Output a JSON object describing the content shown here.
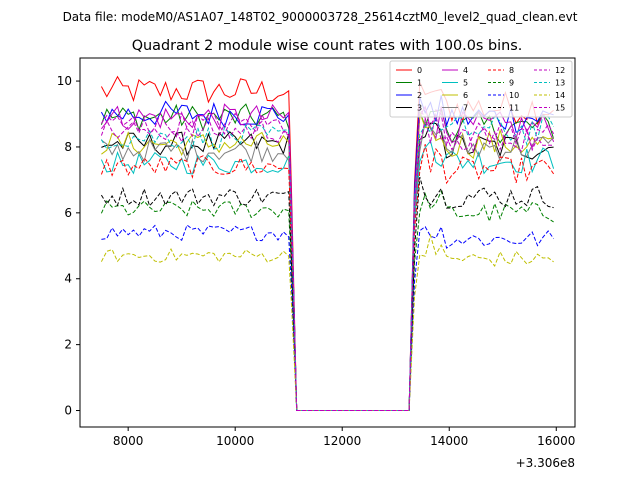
{
  "figure": {
    "suptitle": "Data file: modeM0/AS1A07_148T02_9000003728_25614cztM0_level2_quad_clean.evt"
  },
  "chart_data": {
    "type": "line",
    "title": "Quadrant 2 module wise count rates with 100.0s bins.",
    "xlabel": "",
    "ylabel": "",
    "x_offset_label": "+3.306e8",
    "xlim": [
      7100,
      16350
    ],
    "ylim": [
      -0.5,
      10.7
    ],
    "x_ticks": [
      8000,
      10000,
      12000,
      14000,
      16000
    ],
    "x_tick_labels": [
      "8000",
      "10000",
      "12000",
      "14000",
      "16000"
    ],
    "y_ticks": [
      0,
      2,
      4,
      6,
      8,
      10
    ],
    "y_tick_labels": [
      "0",
      "2",
      "4",
      "6",
      "8",
      "10"
    ],
    "grid": false,
    "legend_position": "top-right",
    "legend_columns": 4,
    "x_start": 7500,
    "bin_width": 100,
    "gap": {
      "start": 11150,
      "end": 13250,
      "value": 0
    },
    "series": [
      {
        "name": "0",
        "color": "#ff0000",
        "dash": "solid",
        "level_before": 9.7,
        "level_after": 9.2
      },
      {
        "name": "1",
        "color": "#008000",
        "dash": "solid",
        "level_before": 8.9,
        "level_after": 8.6
      },
      {
        "name": "2",
        "color": "#0000ff",
        "dash": "solid",
        "level_before": 9.0,
        "level_after": 8.9
      },
      {
        "name": "3",
        "color": "#000000",
        "dash": "solid",
        "level_before": 8.1,
        "level_after": 8.0
      },
      {
        "name": "4",
        "color": "#bf00bf",
        "dash": "solid",
        "level_before": 8.9,
        "level_after": 8.6
      },
      {
        "name": "5",
        "color": "#00bfbf",
        "dash": "solid",
        "level_before": 7.5,
        "level_after": 7.6
      },
      {
        "name": "6",
        "color": "#bfbf00",
        "dash": "solid",
        "level_before": 8.1,
        "level_after": 8.1
      },
      {
        "name": "7",
        "color": "#808080",
        "dash": "solid",
        "level_before": 7.9,
        "level_after": 8.0
      },
      {
        "name": "8",
        "color": "#ff0000",
        "dash": "dashed",
        "level_before": 7.4,
        "level_after": 7.3
      },
      {
        "name": "9",
        "color": "#008000",
        "dash": "dashed",
        "level_before": 6.1,
        "level_after": 6.0
      },
      {
        "name": "10",
        "color": "#0000ff",
        "dash": "dashed",
        "level_before": 5.4,
        "level_after": 5.2
      },
      {
        "name": "11",
        "color": "#000000",
        "dash": "dashed",
        "level_before": 6.5,
        "level_after": 6.5
      },
      {
        "name": "12",
        "color": "#bf00bf",
        "dash": "dashed",
        "level_before": 8.5,
        "level_after": 8.3
      },
      {
        "name": "13",
        "color": "#00bfbf",
        "dash": "dashed",
        "level_before": 8.3,
        "level_after": 8.5
      },
      {
        "name": "14",
        "color": "#bfbf00",
        "dash": "dashed",
        "level_before": 4.7,
        "level_after": 4.6
      },
      {
        "name": "15",
        "color": "#bf00bf",
        "dash": "dashed",
        "level_before": 8.7,
        "level_after": 8.3
      }
    ]
  }
}
